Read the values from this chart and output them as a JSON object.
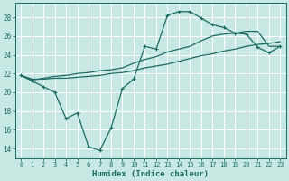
{
  "xlabel": "Humidex (Indice chaleur)",
  "xlim": [
    -0.5,
    23.5
  ],
  "ylim": [
    13.0,
    29.5
  ],
  "yticks": [
    14,
    16,
    18,
    20,
    22,
    24,
    26,
    28
  ],
  "xticks": [
    0,
    1,
    2,
    3,
    4,
    5,
    6,
    7,
    8,
    9,
    10,
    11,
    12,
    13,
    14,
    15,
    16,
    17,
    18,
    19,
    20,
    21,
    22,
    23
  ],
  "bg_color": "#c8e8e4",
  "grid_color": "#ffffff",
  "line_color": "#1a6b60",
  "line1_x": [
    0,
    1,
    2,
    3,
    4,
    5,
    6,
    7,
    8,
    9,
    10,
    11,
    12,
    13,
    14,
    15,
    16,
    17,
    18,
    19,
    20,
    21,
    22,
    23
  ],
  "line1_y": [
    21.8,
    21.2,
    20.6,
    20.0,
    17.2,
    17.8,
    14.2,
    13.8,
    16.2,
    20.4,
    21.4,
    24.9,
    24.6,
    28.2,
    28.6,
    28.6,
    27.9,
    27.2,
    26.9,
    26.3,
    26.2,
    24.8,
    24.2,
    24.9
  ],
  "line2_x": [
    0,
    1,
    2,
    3,
    4,
    5,
    6,
    7,
    8,
    9,
    10,
    11,
    12,
    13,
    14,
    15,
    16,
    17,
    18,
    19,
    20,
    21,
    22,
    23
  ],
  "line2_y": [
    21.8,
    21.4,
    21.4,
    21.5,
    21.5,
    21.6,
    21.7,
    21.8,
    22.0,
    22.1,
    22.3,
    22.6,
    22.8,
    23.0,
    23.3,
    23.6,
    23.9,
    24.1,
    24.4,
    24.6,
    24.9,
    25.1,
    25.2,
    25.4
  ],
  "line3_x": [
    0,
    1,
    2,
    3,
    4,
    5,
    6,
    7,
    8,
    9,
    10,
    11,
    12,
    13,
    14,
    15,
    16,
    17,
    18,
    19,
    20,
    21,
    22,
    23
  ],
  "line3_y": [
    21.8,
    21.3,
    21.5,
    21.7,
    21.8,
    22.0,
    22.1,
    22.3,
    22.4,
    22.6,
    23.1,
    23.5,
    23.8,
    24.3,
    24.6,
    24.9,
    25.5,
    26.0,
    26.2,
    26.3,
    26.5,
    26.5,
    24.9,
    24.9
  ]
}
